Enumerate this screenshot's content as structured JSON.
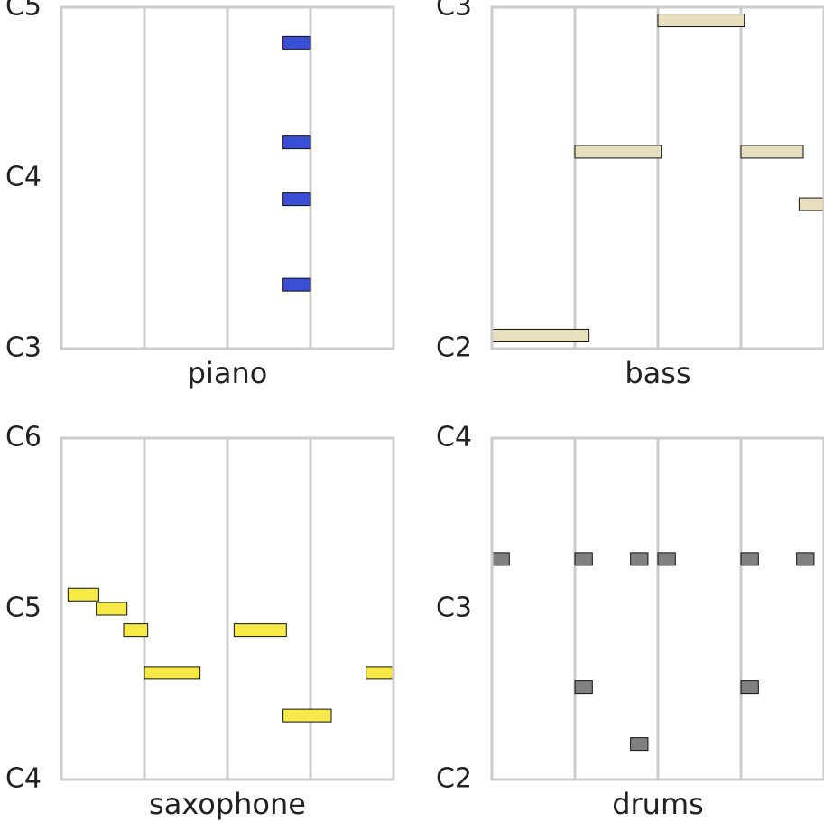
{
  "style": {
    "grid_color": "#cccccc",
    "frame_color": "#cccccc",
    "note_stroke": "#111111"
  },
  "chart_data": [
    {
      "type": "pianoroll",
      "xlabel": "piano",
      "ytick_labels": [
        "C3",
        "C4",
        "C5"
      ],
      "ylim": [
        0,
        24
      ],
      "xlim": [
        0,
        4
      ],
      "color": "#3a4ed6",
      "notes": [
        {
          "start": 2.67,
          "end": 3.0,
          "pitch": 4
        },
        {
          "start": 2.67,
          "end": 3.0,
          "pitch": 10
        },
        {
          "start": 2.67,
          "end": 3.0,
          "pitch": 14
        },
        {
          "start": 2.67,
          "end": 3.0,
          "pitch": 21
        }
      ]
    },
    {
      "type": "pianoroll",
      "xlabel": "bass",
      "ytick_labels": [
        "C2",
        "C3"
      ],
      "ylim": [
        0,
        13
      ],
      "xlim": [
        0,
        4
      ],
      "color": "#e8dfbf",
      "notes": [
        {
          "start": 0.0,
          "end": 1.17,
          "pitch": 0
        },
        {
          "start": 1.0,
          "end": 2.04,
          "pitch": 7
        },
        {
          "start": 2.0,
          "end": 3.04,
          "pitch": 12
        },
        {
          "start": 3.0,
          "end": 3.75,
          "pitch": 7
        },
        {
          "start": 3.7,
          "end": 4.0,
          "pitch": 5
        }
      ]
    },
    {
      "type": "pianoroll",
      "xlabel": "saxophone",
      "ytick_labels": [
        "C4",
        "C5",
        "C6"
      ],
      "ylim": [
        0,
        24
      ],
      "xlim": [
        0,
        4
      ],
      "color": "#f7ea48",
      "notes": [
        {
          "start": 0.08,
          "end": 0.45,
          "pitch": 12.5
        },
        {
          "start": 0.42,
          "end": 0.79,
          "pitch": 11.5
        },
        {
          "start": 0.75,
          "end": 1.04,
          "pitch": 10
        },
        {
          "start": 1.0,
          "end": 1.67,
          "pitch": 7
        },
        {
          "start": 2.08,
          "end": 2.71,
          "pitch": 10
        },
        {
          "start": 2.67,
          "end": 3.25,
          "pitch": 4
        },
        {
          "start": 3.67,
          "end": 4.0,
          "pitch": 7
        }
      ]
    },
    {
      "type": "pianoroll",
      "xlabel": "drums",
      "ytick_labels": [
        "C2",
        "C3",
        "C4"
      ],
      "ylim": [
        0,
        24
      ],
      "xlim": [
        0,
        4
      ],
      "color": "#808080",
      "notes": [
        {
          "start": 0.0,
          "end": 0.21,
          "pitch": 15
        },
        {
          "start": 1.0,
          "end": 1.21,
          "pitch": 15
        },
        {
          "start": 1.67,
          "end": 1.88,
          "pitch": 15
        },
        {
          "start": 2.0,
          "end": 2.21,
          "pitch": 15
        },
        {
          "start": 3.0,
          "end": 3.21,
          "pitch": 15
        },
        {
          "start": 3.67,
          "end": 3.88,
          "pitch": 15
        },
        {
          "start": 1.0,
          "end": 1.21,
          "pitch": 6
        },
        {
          "start": 3.0,
          "end": 3.21,
          "pitch": 6
        },
        {
          "start": 1.67,
          "end": 1.88,
          "pitch": 2
        }
      ]
    }
  ]
}
